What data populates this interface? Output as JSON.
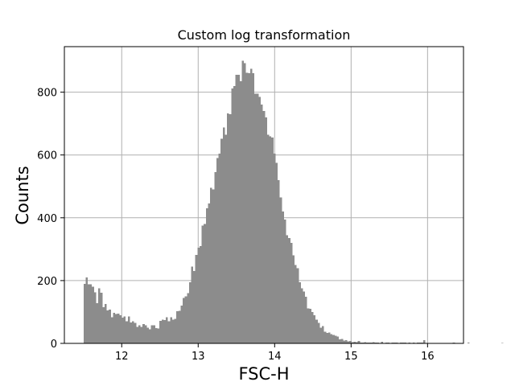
{
  "chart_data": {
    "type": "bar",
    "title": "Custom log transformation",
    "xlabel": "FSC-H",
    "ylabel": "Counts",
    "xlim": [
      11.25,
      16.47
    ],
    "ylim": [
      0,
      945
    ],
    "xticks": [
      "12",
      "13",
      "14",
      "15",
      "16"
    ],
    "yticks": [
      "0",
      "200",
      "400",
      "600",
      "800"
    ],
    "grid": true,
    "bar_color": "#8c8c8c",
    "bin_start": 11.5,
    "bin_width": 0.0276,
    "values": [
      190,
      210,
      188,
      188,
      181,
      163,
      128,
      175,
      161,
      115,
      125,
      105,
      107,
      83,
      97,
      93,
      95,
      90,
      82,
      86,
      70,
      86,
      66,
      71,
      65,
      52,
      57,
      53,
      62,
      58,
      50,
      45,
      58,
      58,
      49,
      48,
      72,
      75,
      74,
      83,
      70,
      83,
      75,
      78,
      103,
      104,
      120,
      145,
      150,
      160,
      195,
      245,
      230,
      282,
      305,
      310,
      375,
      380,
      430,
      445,
      495,
      490,
      545,
      590,
      605,
      652,
      688,
      665,
      732,
      730,
      812,
      820,
      855,
      855,
      835,
      900,
      892,
      862,
      860,
      875,
      860,
      795,
      795,
      785,
      760,
      740,
      720,
      665,
      660,
      655,
      605,
      575,
      520,
      465,
      420,
      395,
      345,
      335,
      320,
      280,
      250,
      240,
      195,
      175,
      165,
      148,
      112,
      110,
      100,
      90,
      75,
      65,
      50,
      55,
      37,
      33,
      35,
      30,
      27,
      24,
      22,
      13,
      14,
      9,
      10,
      6,
      8,
      4,
      5,
      4,
      8,
      3,
      2,
      4,
      3,
      2,
      2,
      4,
      3,
      2,
      1,
      5,
      1,
      2,
      2,
      1,
      3,
      2,
      2,
      1,
      2,
      3,
      2,
      1,
      2,
      1,
      2,
      1,
      2,
      2,
      2,
      10,
      1,
      1,
      0,
      1,
      0,
      0,
      0,
      0,
      1,
      0,
      0,
      0,
      0,
      3,
      1,
      0,
      0,
      0,
      0,
      0,
      2,
      0,
      0,
      0,
      0,
      0,
      0,
      0,
      0,
      0,
      0,
      0,
      0,
      0,
      0,
      0,
      1,
      0,
      0,
      0,
      0,
      0,
      0,
      0,
      0,
      0,
      0,
      0,
      0,
      0,
      0,
      0,
      1
    ]
  }
}
